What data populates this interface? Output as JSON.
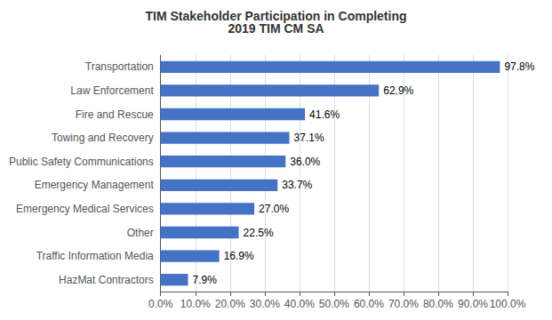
{
  "chart_data": {
    "type": "bar",
    "orientation": "horizontal",
    "title": "TIM Stakeholder Participation in Completing\n2019 TIM CM SA",
    "categories": [
      "HazMat Contractors",
      "Traffic Information Media",
      "Other",
      "Emergency Medical Services",
      "Emergency Management",
      "Public Safety Communications",
      "Towing and Recovery",
      "Fire and Rescue",
      "Law Enforcement",
      "Transportation"
    ],
    "values": [
      7.9,
      16.9,
      22.5,
      27.0,
      33.7,
      36.0,
      37.1,
      41.6,
      62.9,
      97.8
    ],
    "value_labels": [
      "7.9%",
      "16.9%",
      "22.5%",
      "27.0%",
      "33.7%",
      "36.0%",
      "37.1%",
      "41.6%",
      "62.9%",
      "97.8%"
    ],
    "data_labels": true,
    "color": "#4472c4",
    "xlim": [
      0,
      100
    ],
    "xticks": [
      {
        "value": 0,
        "label": "0.0%"
      },
      {
        "value": 10,
        "label": "10.0%"
      },
      {
        "value": 20,
        "label": "20.0%"
      },
      {
        "value": 30,
        "label": "30.0%"
      },
      {
        "value": 40,
        "label": "40.0%"
      },
      {
        "value": 50,
        "label": "50.0%"
      },
      {
        "value": 60,
        "label": "60.0%"
      },
      {
        "value": 70,
        "label": "70.0%"
      },
      {
        "value": 80,
        "label": "80.0%"
      },
      {
        "value": 90,
        "label": "90.0%"
      },
      {
        "value": 100,
        "label": "100.0%"
      }
    ],
    "grid": true
  }
}
